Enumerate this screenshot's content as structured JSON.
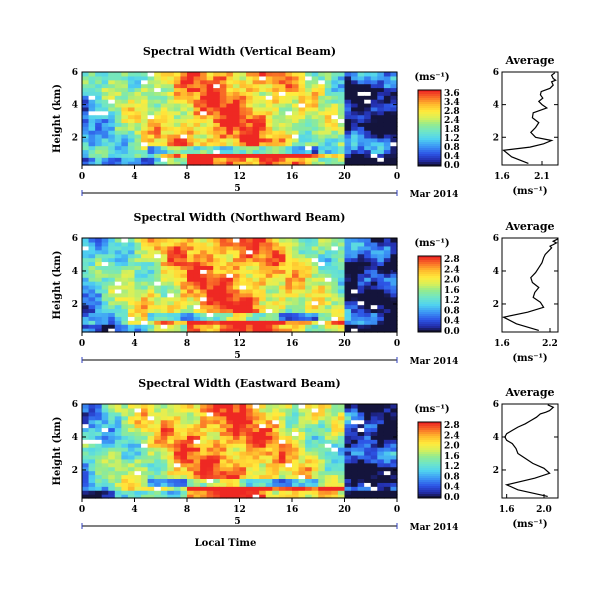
{
  "chart_data": [
    {
      "type": "heatmap",
      "title": "Spectral Width (Vertical Beam)",
      "ylabel": "Height (km)",
      "xlabel": "",
      "x_ticks": [
        "0",
        "4",
        "8",
        "12",
        "16",
        "20",
        "0"
      ],
      "y_ticks": [
        "2",
        "4",
        "6"
      ],
      "date_axis": {
        "label": "5",
        "month": "Mar 2014"
      },
      "colorbar": {
        "unit": "(ms⁻¹)",
        "ticks": [
          "3.6",
          "3.4",
          "2.8",
          "2.4",
          "1.8",
          "1.2",
          "0.8",
          "0.4",
          "0.0"
        ],
        "range": [
          0.0,
          3.6
        ]
      },
      "field_summary": {
        "x_range_hours": [
          0,
          24
        ],
        "y_range_km": [
          0.3,
          6.0
        ],
        "high_width_region": "08-20 LT, 1-6 km",
        "low_width_region": "20-24 LT above 3 km"
      }
    },
    {
      "type": "heatmap",
      "title": "Spectral Width (Northward Beam)",
      "ylabel": "Height (km)",
      "xlabel": "",
      "x_ticks": [
        "0",
        "4",
        "8",
        "12",
        "16",
        "20",
        "0"
      ],
      "y_ticks": [
        "2",
        "4",
        "6"
      ],
      "date_axis": {
        "label": "5",
        "month": "Mar 2014"
      },
      "colorbar": {
        "unit": "(ms⁻¹)",
        "ticks": [
          "2.8",
          "2.4",
          "2.0",
          "1.6",
          "1.2",
          "0.8",
          "0.4",
          "0.0"
        ],
        "range": [
          0.0,
          2.8
        ]
      },
      "field_summary": {
        "x_range_hours": [
          0,
          24
        ],
        "y_range_km": [
          0.3,
          6.0
        ],
        "high_width_region": "04-20 LT, 1-6 km",
        "low_width_region": "20-24 LT above 2 km"
      }
    },
    {
      "type": "heatmap",
      "title": "Spectral Width (Eastward Beam)",
      "ylabel": "Height (km)",
      "xlabel": "Local Time",
      "x_ticks": [
        "0",
        "4",
        "8",
        "12",
        "16",
        "20",
        "0"
      ],
      "y_ticks": [
        "2",
        "4",
        "6"
      ],
      "date_axis": {
        "label": "5",
        "month": "Mar 2014"
      },
      "colorbar": {
        "unit": "(ms⁻¹)",
        "ticks": [
          "2.8",
          "2.4",
          "2.0",
          "1.6",
          "1.2",
          "0.8",
          "0.4",
          "0.0"
        ],
        "range": [
          0.0,
          2.8
        ]
      },
      "field_summary": {
        "x_range_hours": [
          0,
          24
        ],
        "y_range_km": [
          0.3,
          6.0
        ],
        "high_width_region": "06-20 LT, 1-6 km",
        "low_width_region": "20-24 LT above 2 km"
      }
    },
    {
      "type": "line",
      "title": "Average",
      "xlabel": "(ms⁻¹)",
      "ylabel": "",
      "x_ticks": [
        "1.6",
        "2.1"
      ],
      "y_ticks": [
        "2",
        "4",
        "6"
      ],
      "xlim": [
        1.6,
        2.3
      ],
      "ylim": [
        0.3,
        6.0
      ],
      "series": [
        {
          "x": [
            1.93,
            1.72,
            1.62,
            1.95,
            2.12,
            2.22,
            2.02,
            1.96,
            2.02,
            2.06,
            1.98,
            1.99,
            2.16,
            2.1,
            2.06,
            2.11,
            2.08,
            2.09,
            2.2,
            2.24,
            2.22,
            2.27,
            2.24,
            2.22,
            2.26
          ],
          "y": [
            0.4,
            0.8,
            1.2,
            1.4,
            1.6,
            1.8,
            2.0,
            2.3,
            2.6,
            2.9,
            3.2,
            3.5,
            3.8,
            4.0,
            4.2,
            4.4,
            4.6,
            4.8,
            5.0,
            5.2,
            5.4,
            5.5,
            5.6,
            5.8,
            5.95
          ]
        }
      ]
    },
    {
      "type": "line",
      "title": "Average",
      "xlabel": "(ms⁻¹)",
      "ylabel": "",
      "x_ticks": [
        "1.6",
        "2.2"
      ],
      "y_ticks": [
        "2",
        "4",
        "6"
      ],
      "xlim": [
        1.6,
        2.3
      ],
      "ylim": [
        0.3,
        6.0
      ],
      "series": [
        {
          "x": [
            2.06,
            1.78,
            1.62,
            1.92,
            2.12,
            2.08,
            1.99,
            2.01,
            2.06,
            1.98,
            1.96,
            2.02,
            2.06,
            2.1,
            2.12,
            2.14,
            2.18,
            2.22,
            2.2,
            2.24,
            2.28,
            2.24,
            2.3
          ],
          "y": [
            0.4,
            0.8,
            1.2,
            1.5,
            1.8,
            2.1,
            2.4,
            2.7,
            3.0,
            3.3,
            3.6,
            3.9,
            4.2,
            4.5,
            4.8,
            5.0,
            5.2,
            5.4,
            5.5,
            5.6,
            5.7,
            5.8,
            5.95
          ]
        }
      ]
    },
    {
      "type": "line",
      "title": "Average",
      "xlabel": "(ms⁻¹)",
      "ylabel": "",
      "x_ticks": [
        "1.6",
        "2.0"
      ],
      "y_ticks": [
        "2",
        "4",
        "6"
      ],
      "xlim": [
        1.55,
        2.15
      ],
      "ylim": [
        0.3,
        6.0
      ],
      "series": [
        {
          "x": [
            2.04,
            1.72,
            1.6,
            1.9,
            2.06,
            2.0,
            1.88,
            1.8,
            1.72,
            1.7,
            1.66,
            1.6,
            1.58,
            1.6,
            1.66,
            1.72,
            1.8,
            1.86,
            1.92,
            1.96,
            2.02,
            2.06,
            2.1,
            2.04
          ],
          "y": [
            0.4,
            0.8,
            1.1,
            1.5,
            1.8,
            2.1,
            2.4,
            2.7,
            3.0,
            3.3,
            3.6,
            3.8,
            4.0,
            4.2,
            4.4,
            4.6,
            4.8,
            5.0,
            5.2,
            5.4,
            5.5,
            5.6,
            5.8,
            5.95
          ]
        }
      ]
    }
  ]
}
